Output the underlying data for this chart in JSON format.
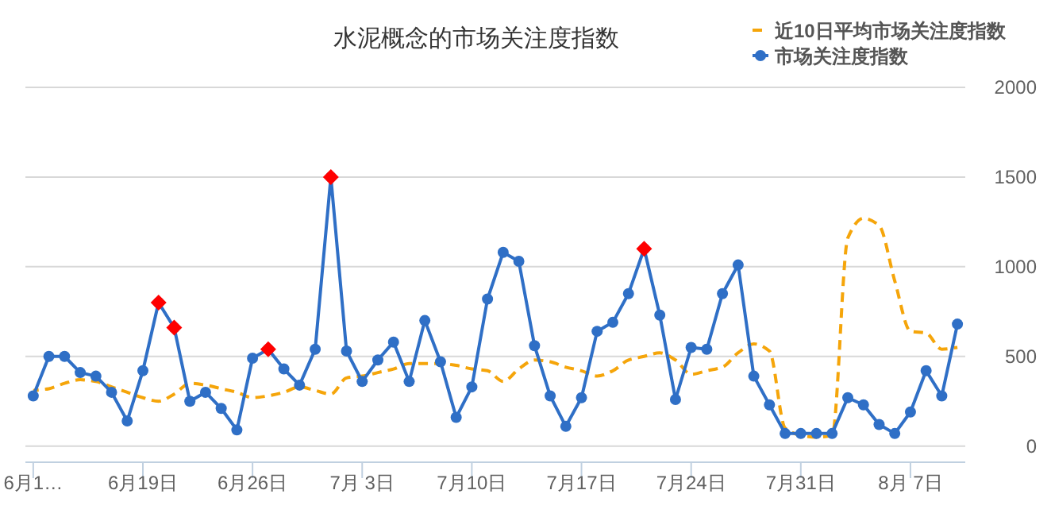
{
  "chart_data": {
    "type": "line",
    "title": "水泥概念的市场关注度指数",
    "categories": [
      "6月1…",
      null,
      null,
      null,
      null,
      null,
      null,
      "6月19日",
      null,
      null,
      null,
      null,
      null,
      null,
      "6月26日",
      null,
      null,
      null,
      null,
      null,
      null,
      "7月 3日",
      null,
      null,
      null,
      null,
      null,
      null,
      "7月10日",
      null,
      null,
      null,
      null,
      null,
      null,
      "7月17日",
      null,
      null,
      null,
      null,
      null,
      null,
      "7月24日",
      null,
      null,
      null,
      null,
      null,
      null,
      "7月31日",
      null,
      null,
      null,
      null,
      null,
      null,
      "8月 7日",
      null,
      null,
      null
    ],
    "ylim": [
      -90,
      2000
    ],
    "yticks": [
      0,
      500,
      1000,
      1500,
      2000
    ],
    "grid": "y",
    "legend": "top right",
    "series": [
      {
        "name": "近10日平均市场关注度指数",
        "color": "#f5a50a",
        "line_style": "dashed",
        "marker": "none",
        "values": [
          310,
          320,
          350,
          370,
          360,
          330,
          300,
          270,
          250,
          290,
          350,
          340,
          320,
          300,
          270,
          280,
          300,
          330,
          310,
          290,
          380,
          390,
          410,
          430,
          460,
          460,
          460,
          450,
          430,
          420,
          360,
          430,
          480,
          470,
          440,
          420,
          390,
          420,
          480,
          500,
          520,
          480,
          400,
          420,
          440,
          520,
          570,
          530,
          100,
          60,
          50,
          60,
          1160,
          1270,
          1230,
          920,
          640,
          630,
          540,
          550
        ]
      },
      {
        "name": "市场关注度指数",
        "color": "#2f6fc6",
        "line_style": "solid",
        "marker": "circle",
        "values": [
          280,
          500,
          500,
          410,
          390,
          300,
          140,
          420,
          800,
          660,
          250,
          300,
          210,
          90,
          490,
          540,
          430,
          340,
          540,
          1500,
          530,
          360,
          480,
          580,
          360,
          700,
          470,
          160,
          330,
          820,
          1080,
          1030,
          560,
          280,
          110,
          270,
          640,
          690,
          850,
          1100,
          730,
          260,
          550,
          540,
          850,
          1010,
          390,
          230,
          70,
          70,
          70,
          70,
          270,
          230,
          120,
          70,
          190,
          420,
          280,
          680
        ]
      },
      {
        "type": "scatter",
        "color": "#ff0000",
        "marker": "diamond",
        "values": [
          null,
          null,
          null,
          null,
          null,
          null,
          null,
          null,
          800,
          660,
          null,
          null,
          null,
          null,
          null,
          540,
          null,
          null,
          null,
          1500,
          null,
          null,
          null,
          null,
          null,
          null,
          null,
          null,
          null,
          null,
          null,
          null,
          null,
          null,
          null,
          null,
          null,
          null,
          null,
          1100,
          null,
          null,
          null,
          null,
          null,
          null,
          null,
          null,
          null,
          null,
          null,
          null,
          null,
          null,
          null,
          null,
          null,
          null,
          null,
          null
        ]
      }
    ]
  }
}
